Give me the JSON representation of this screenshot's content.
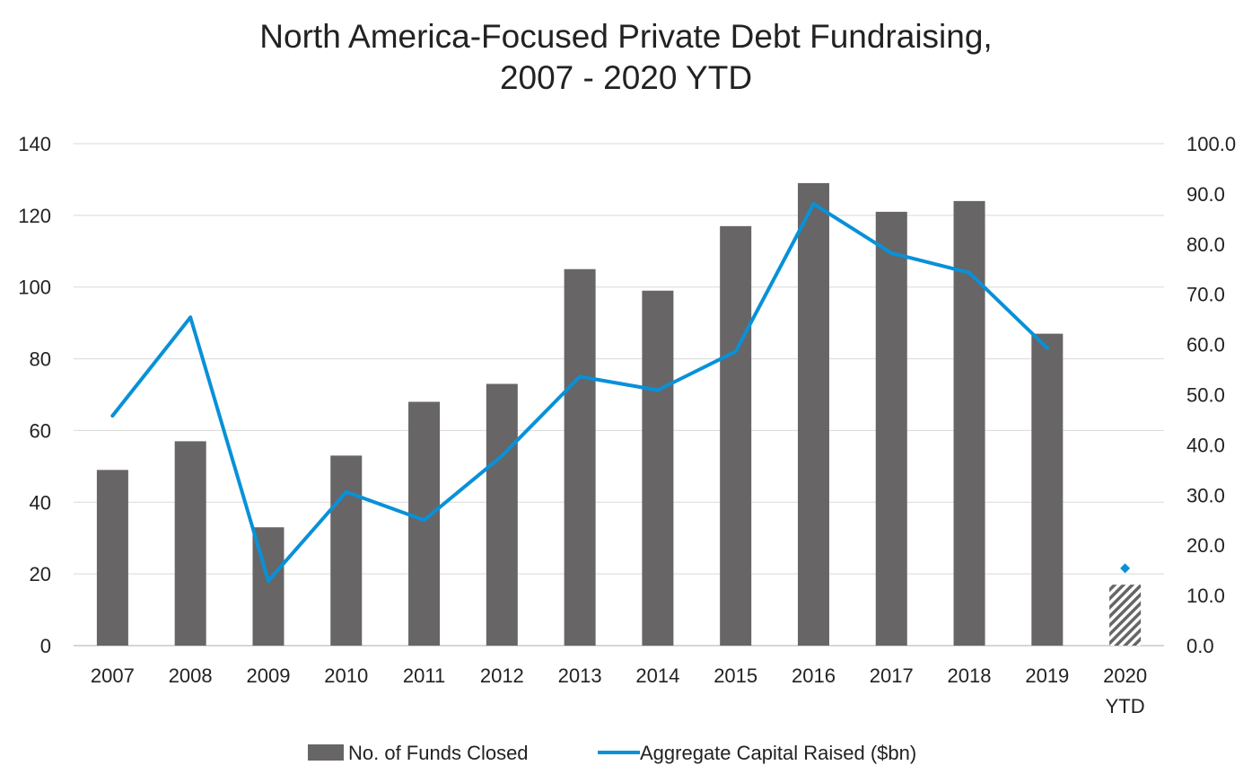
{
  "chart_data": {
    "type": "bar",
    "title_lines": [
      "North America-Focused Private Debt Fundraising,",
      "2007 - 2020 YTD"
    ],
    "categories": [
      "2007",
      "2008",
      "2009",
      "2010",
      "2011",
      "2012",
      "2013",
      "2014",
      "2015",
      "2016",
      "2017",
      "2018",
      "2019",
      "2020 YTD"
    ],
    "series": [
      {
        "name": "No. of Funds Closed",
        "type": "bar",
        "axis": "left",
        "color": "#676566",
        "values": [
          49,
          57,
          33,
          53,
          68,
          73,
          105,
          99,
          117,
          129,
          121,
          124,
          87,
          17
        ],
        "hatched_last": true
      },
      {
        "name": "Aggregate Capital Raised ($bn)",
        "type": "line",
        "axis": "right",
        "color": "#0891d8",
        "values": [
          45.8,
          65.4,
          12.9,
          30.6,
          25.0,
          37.8,
          53.6,
          50.9,
          58.6,
          88.0,
          78.2,
          74.3,
          59.3,
          15.4
        ],
        "last_point_separate": true
      }
    ],
    "y_left": {
      "min": 0,
      "max": 140,
      "ticks": [
        "0",
        "20",
        "40",
        "60",
        "80",
        "100",
        "120",
        "140"
      ]
    },
    "y_right": {
      "min": 0,
      "max": 100,
      "ticks": [
        "0.0",
        "10.0",
        "20.0",
        "30.0",
        "40.0",
        "50.0",
        "60.0",
        "70.0",
        "80.0",
        "90.0",
        "100.0"
      ]
    },
    "grid": true,
    "legend_position": "bottom"
  }
}
